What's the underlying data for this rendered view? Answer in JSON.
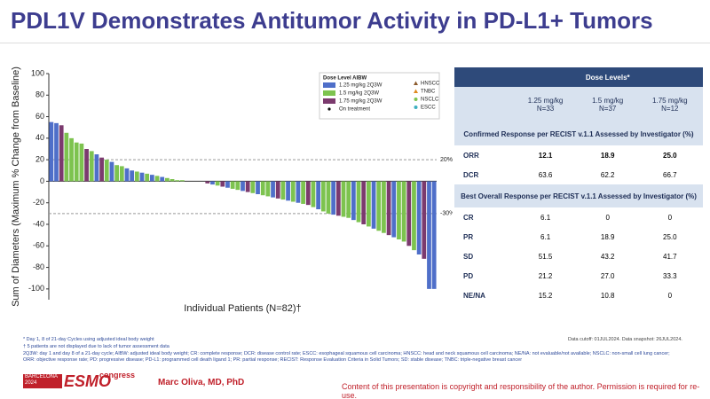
{
  "title": "PDL1V Demonstrates Antitumor Activity in PD-L1+ Tumors",
  "chart_data": {
    "type": "waterfall",
    "y_label": "Sum of Diameters (Maximum % Change from Baseline)",
    "x_label": "Individual Patients (N=82)†",
    "ylim": [
      -110,
      100
    ],
    "yticks": [
      -100,
      -80,
      -60,
      -40,
      -20,
      0,
      20,
      40,
      60,
      80,
      100
    ],
    "reference_lines": [
      {
        "value": 20,
        "label": "20%"
      },
      {
        "value": -30,
        "label": "-30%"
      }
    ],
    "legend_title": "Dose Level AIBW",
    "series": [
      {
        "name": "1.25 mg/kg 2Q3W",
        "color": "#4f6fc9"
      },
      {
        "name": "1.5 mg/kg 2Q3W",
        "color": "#7dc34f"
      },
      {
        "name": "1.75 mg/kg 2Q3W",
        "color": "#7b3a6e"
      }
    ],
    "markers": [
      {
        "name": "On treatment",
        "color": "#111111"
      },
      {
        "name": "HNSCC",
        "color": "#8b5a2b"
      },
      {
        "name": "TNBC",
        "color": "#e08a1e"
      },
      {
        "name": "NSCLC",
        "color": "#7dc34f"
      },
      {
        "name": "ESCC",
        "color": "#3fb0c0"
      }
    ],
    "values": [
      55,
      54,
      52,
      45,
      40,
      36,
      35,
      30,
      28,
      25,
      22,
      20,
      18,
      15,
      14,
      12,
      10,
      9,
      8,
      7,
      6,
      5,
      4,
      3,
      2,
      1,
      1,
      0,
      0,
      0,
      0,
      -2,
      -3,
      -4,
      -5,
      -6,
      -7,
      -8,
      -9,
      -10,
      -11,
      -12,
      -13,
      -14,
      -15,
      -16,
      -17,
      -18,
      -19,
      -20,
      -21,
      -22,
      -24,
      -26,
      -28,
      -30,
      -31,
      -32,
      -33,
      -34,
      -36,
      -38,
      -40,
      -42,
      -44,
      -46,
      -48,
      -50,
      -52,
      -54,
      -56,
      -60,
      -64,
      -68,
      -72,
      -100,
      -100
    ],
    "colors": [
      "#4f6fc9",
      "#4f6fc9",
      "#7b3a6e",
      "#7dc34f",
      "#7dc34f",
      "#7dc34f",
      "#7dc34f",
      "#7b3a6e",
      "#7dc34f",
      "#4f6fc9",
      "#7b3a6e",
      "#7dc34f",
      "#4f6fc9",
      "#7dc34f",
      "#7dc34f",
      "#4f6fc9",
      "#4f6fc9",
      "#7dc34f",
      "#4f6fc9",
      "#7dc34f",
      "#4f6fc9",
      "#7dc34f",
      "#4f6fc9",
      "#7dc34f",
      "#7dc34f",
      "#7dc34f",
      "#7dc34f",
      "#7dc34f",
      "#4f6fc9",
      "#7dc34f",
      "#7dc34f",
      "#7b3a6e",
      "#4f6fc9",
      "#7dc34f",
      "#7b3a6e",
      "#4f6fc9",
      "#7dc34f",
      "#7dc34f",
      "#4f6fc9",
      "#7b3a6e",
      "#7dc34f",
      "#4f6fc9",
      "#7dc34f",
      "#7dc34f",
      "#4f6fc9",
      "#7b3a6e",
      "#7dc34f",
      "#4f6fc9",
      "#7dc34f",
      "#4f6fc9",
      "#7dc34f",
      "#7b3a6e",
      "#7dc34f",
      "#4f6fc9",
      "#7dc34f",
      "#7dc34f",
      "#4f6fc9",
      "#7b3a6e",
      "#7dc34f",
      "#7dc34f",
      "#4f6fc9",
      "#7dc34f",
      "#7b3a6e",
      "#7dc34f",
      "#4f6fc9",
      "#7dc34f",
      "#7dc34f",
      "#7b3a6e",
      "#4f6fc9",
      "#7dc34f",
      "#7dc34f",
      "#7b3a6e",
      "#7dc34f",
      "#4f6fc9",
      "#7b3a6e",
      "#4f6fc9",
      "#4f6fc9"
    ]
  },
  "table": {
    "header": "Dose Levels*",
    "columns": [
      [
        "1.25 mg/kg",
        "N=33"
      ],
      [
        "1.5 mg/kg",
        "N=37"
      ],
      [
        "1.75 mg/kg",
        "N=12"
      ]
    ],
    "sections": [
      {
        "title": "Confirmed Response per RECIST v.1.1 Assessed by Investigator (%)",
        "rows": [
          {
            "label": "ORR",
            "values": [
              "12.1",
              "18.9",
              "25.0"
            ]
          },
          {
            "label": "DCR",
            "values": [
              "63.6",
              "62.2",
              "66.7"
            ]
          }
        ]
      },
      {
        "title": "Best Overall Response per RECIST v.1.1 Assessed by Investigator (%)",
        "rows": [
          {
            "label": "CR",
            "values": [
              "6.1",
              "0",
              "0"
            ]
          },
          {
            "label": "PR",
            "values": [
              "6.1",
              "18.9",
              "25.0"
            ]
          },
          {
            "label": "SD",
            "values": [
              "51.5",
              "43.2",
              "41.7"
            ]
          },
          {
            "label": "PD",
            "values": [
              "21.2",
              "27.0",
              "33.3"
            ]
          },
          {
            "label": "NE/NA",
            "values": [
              "15.2",
              "10.8",
              "0"
            ]
          }
        ]
      }
    ]
  },
  "footnotes": [
    "* Day 1, 8 of 21-day Cycles using adjusted ideal body weight",
    "† 5 patients are not displayed due to lack of tumor assessment data",
    "2Q3W: day 1 and day 8 of a 21-day cycle; AIBW: adjusted ideal body weight; CR: complete response; DCR: disease control rate; ESCC: esophageal squamous cell carcinoma; HNSCC: head and neck squamous cell carcinoma; NE/NA: not evaluable/not available; NSCLC: non-small cell lung cancer; ORR: objective response rate; PD: progressive disease; PD-L1: programmed cell death ligand 1; PR: partial response; RECIST: Response Evaluation Criteria in Solid Tumors; SD: stable disease; TNBC: triple-negative breast cancer"
  ],
  "data_cutoff": "Data cutoff: 01JUL2024. Data snapshot: 26JUL2024.",
  "footer": {
    "congress_city": "BARCELONA",
    "congress_year": "2024",
    "congress_name": "ESMO",
    "congress_word": "congress",
    "presenter": "Marc Oliva, MD, PhD",
    "copyright": "Content of this presentation is copyright and responsibility of the author. Permission is required for re-use."
  }
}
